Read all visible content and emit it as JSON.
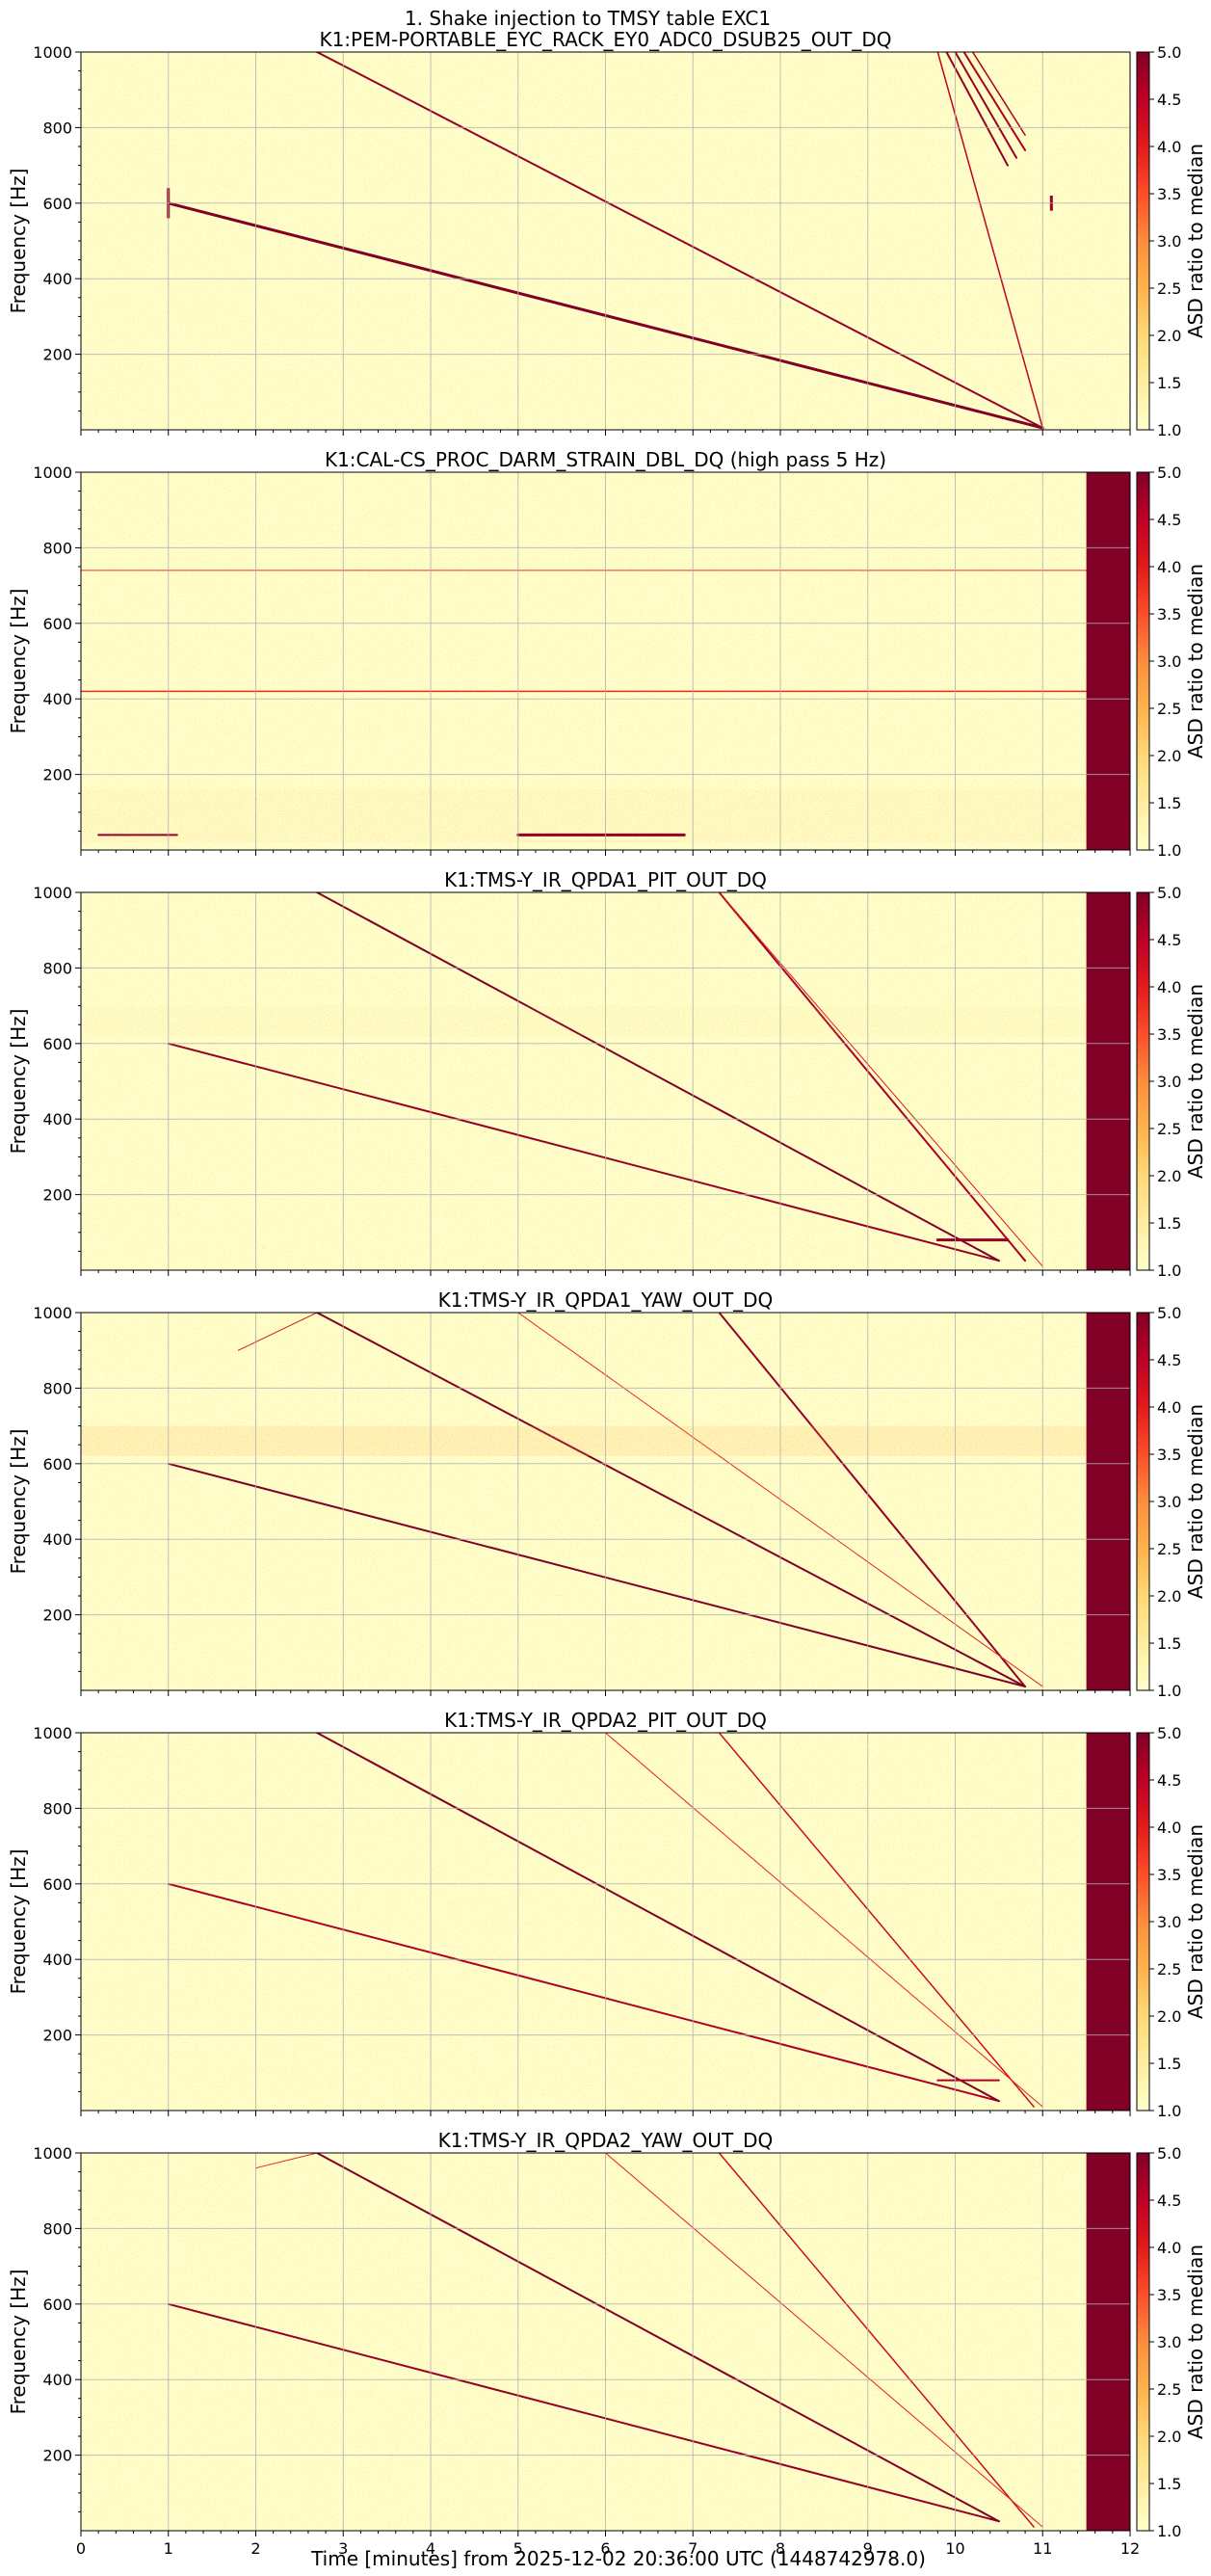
{
  "suptitle": "1. Shake injection to TMSY table EXC1",
  "xlabel": "Time [minutes] from 2025-12-02 20:36:00 UTC (1448742978.0)",
  "chart_data": [
    {
      "type": "heatmap",
      "title": "K1:PEM-PORTABLE_EYC_RACK_EY0_ADC0_DSUB25_OUT_DQ",
      "ylabel": "Frequency [Hz]",
      "colorbar_label": "ASD ratio to median",
      "xlim": [
        0,
        12
      ],
      "ylim": [
        0,
        1000
      ],
      "xticks": [
        0,
        1,
        2,
        3,
        4,
        5,
        6,
        7,
        8,
        9,
        10,
        11,
        12
      ],
      "yticks": [
        200,
        400,
        600,
        800,
        1000
      ],
      "colorbar_ticks": [
        1.0,
        1.5,
        2.0,
        2.5,
        3.0,
        3.5,
        4.0,
        4.5,
        5.0
      ],
      "clim": [
        1.0,
        5.0
      ],
      "saturated_block": null,
      "features": [
        {
          "kind": "line",
          "x": [
            1.0,
            11.0
          ],
          "y": [
            600,
            5
          ],
          "strength": 1.0,
          "width": 3
        },
        {
          "kind": "line",
          "x": [
            2.7,
            11.0
          ],
          "y": [
            1000,
            5
          ],
          "strength": 0.9,
          "width": 2
        },
        {
          "kind": "line",
          "x": [
            9.8,
            11.0
          ],
          "y": [
            1000,
            5
          ],
          "strength": 0.7,
          "width": 1.5
        },
        {
          "kind": "line",
          "x": [
            9.9,
            10.6
          ],
          "y": [
            1000,
            700
          ],
          "strength": 0.9,
          "width": 2
        },
        {
          "kind": "line",
          "x": [
            10.0,
            10.7
          ],
          "y": [
            1000,
            720
          ],
          "strength": 0.9,
          "width": 2
        },
        {
          "kind": "line",
          "x": [
            10.1,
            10.8
          ],
          "y": [
            1000,
            740
          ],
          "strength": 0.8,
          "width": 2
        },
        {
          "kind": "line",
          "x": [
            10.2,
            10.8
          ],
          "y": [
            1000,
            780
          ],
          "strength": 0.8,
          "width": 1.5
        },
        {
          "kind": "vspike",
          "x": 1.0,
          "y": [
            560,
            640
          ],
          "strength": 0.9
        },
        {
          "kind": "vspike",
          "x": 11.1,
          "y": [
            580,
            620
          ],
          "strength": 0.9
        }
      ]
    },
    {
      "type": "heatmap",
      "title": "K1:CAL-CS_PROC_DARM_STRAIN_DBL_DQ (high pass 5 Hz)",
      "ylabel": "Frequency [Hz]",
      "colorbar_label": "ASD ratio to median",
      "xlim": [
        0,
        12
      ],
      "ylim": [
        0,
        1000
      ],
      "xticks": [
        0,
        1,
        2,
        3,
        4,
        5,
        6,
        7,
        8,
        9,
        10,
        11,
        12
      ],
      "yticks": [
        200,
        400,
        600,
        800,
        1000
      ],
      "colorbar_ticks": [
        1.0,
        1.5,
        2.0,
        2.5,
        3.0,
        3.5,
        4.0,
        4.5,
        5.0
      ],
      "clim": [
        1.0,
        5.0
      ],
      "saturated_block": [
        11.5,
        12.0
      ],
      "features": [
        {
          "kind": "hband",
          "x": [
            0,
            11.5
          ],
          "y": [
            20,
            160
          ],
          "strength": 0.35
        },
        {
          "kind": "line",
          "x": [
            0.2,
            1.1
          ],
          "y": [
            40,
            40
          ],
          "strength": 0.9,
          "width": 2
        },
        {
          "kind": "line",
          "x": [
            5.0,
            6.9
          ],
          "y": [
            40,
            40
          ],
          "strength": 0.9,
          "width": 3
        },
        {
          "kind": "line",
          "x": [
            0,
            11.5
          ],
          "y": [
            420,
            420
          ],
          "strength": 0.35,
          "width": 1.5
        },
        {
          "kind": "line",
          "x": [
            0,
            11.5
          ],
          "y": [
            740,
            740
          ],
          "strength": 0.3,
          "width": 1
        }
      ]
    },
    {
      "type": "heatmap",
      "title": "K1:TMS-Y_IR_QPDA1_PIT_OUT_DQ",
      "ylabel": "Frequency [Hz]",
      "colorbar_label": "ASD ratio to median",
      "xlim": [
        0,
        12
      ],
      "ylim": [
        0,
        1000
      ],
      "xticks": [
        0,
        1,
        2,
        3,
        4,
        5,
        6,
        7,
        8,
        9,
        10,
        11,
        12
      ],
      "yticks": [
        200,
        400,
        600,
        800,
        1000
      ],
      "colorbar_ticks": [
        1.0,
        1.5,
        2.0,
        2.5,
        3.0,
        3.5,
        4.0,
        4.5,
        5.0
      ],
      "clim": [
        1.0,
        5.0
      ],
      "saturated_block": [
        11.5,
        12.0
      ],
      "features": [
        {
          "kind": "line",
          "x": [
            1.0,
            10.5
          ],
          "y": [
            600,
            25
          ],
          "strength": 0.9,
          "width": 2
        },
        {
          "kind": "line",
          "x": [
            2.7,
            10.5
          ],
          "y": [
            1000,
            25
          ],
          "strength": 1.0,
          "width": 2
        },
        {
          "kind": "line",
          "x": [
            7.3,
            10.8
          ],
          "y": [
            1000,
            25
          ],
          "strength": 0.8,
          "width": 2
        },
        {
          "kind": "line",
          "x": [
            7.3,
            11.0
          ],
          "y": [
            1000,
            10
          ],
          "strength": 0.5,
          "width": 1
        },
        {
          "kind": "line",
          "x": [
            9.8,
            10.6
          ],
          "y": [
            80,
            80
          ],
          "strength": 0.9,
          "width": 3
        },
        {
          "kind": "hband",
          "x": [
            0,
            11.5
          ],
          "y": [
            620,
            700
          ],
          "strength": 0.25
        }
      ]
    },
    {
      "type": "heatmap",
      "title": "K1:TMS-Y_IR_QPDA1_YAW_OUT_DQ",
      "ylabel": "Frequency [Hz]",
      "colorbar_label": "ASD ratio to median",
      "xlim": [
        0,
        12
      ],
      "ylim": [
        0,
        1000
      ],
      "xticks": [
        0,
        1,
        2,
        3,
        4,
        5,
        6,
        7,
        8,
        9,
        10,
        11,
        12
      ],
      "yticks": [
        200,
        400,
        600,
        800,
        1000
      ],
      "colorbar_ticks": [
        1.0,
        1.5,
        2.0,
        2.5,
        3.0,
        3.5,
        4.0,
        4.5,
        5.0
      ],
      "clim": [
        1.0,
        5.0
      ],
      "saturated_block": [
        11.5,
        12.0
      ],
      "features": [
        {
          "kind": "line",
          "x": [
            1.0,
            10.8
          ],
          "y": [
            600,
            10
          ],
          "strength": 1.0,
          "width": 2
        },
        {
          "kind": "line",
          "x": [
            2.7,
            10.8
          ],
          "y": [
            1000,
            10
          ],
          "strength": 1.0,
          "width": 2
        },
        {
          "kind": "line",
          "x": [
            7.3,
            10.8
          ],
          "y": [
            1000,
            10
          ],
          "strength": 0.9,
          "width": 2
        },
        {
          "kind": "line",
          "x": [
            5.0,
            11.0
          ],
          "y": [
            1000,
            10
          ],
          "strength": 0.4,
          "width": 1
        },
        {
          "kind": "line",
          "x": [
            1.8,
            2.7
          ],
          "y": [
            900,
            1000
          ],
          "strength": 0.5,
          "width": 1
        },
        {
          "kind": "hband",
          "x": [
            0,
            11.5
          ],
          "y": [
            620,
            700
          ],
          "strength": 0.7
        }
      ]
    },
    {
      "type": "heatmap",
      "title": "K1:TMS-Y_IR_QPDA2_PIT_OUT_DQ",
      "ylabel": "Frequency [Hz]",
      "colorbar_label": "ASD ratio to median",
      "xlim": [
        0,
        12
      ],
      "ylim": [
        0,
        1000
      ],
      "xticks": [
        0,
        1,
        2,
        3,
        4,
        5,
        6,
        7,
        8,
        9,
        10,
        11,
        12
      ],
      "yticks": [
        200,
        400,
        600,
        800,
        1000
      ],
      "colorbar_ticks": [
        1.0,
        1.5,
        2.0,
        2.5,
        3.0,
        3.5,
        4.0,
        4.5,
        5.0
      ],
      "clim": [
        1.0,
        5.0
      ],
      "saturated_block": [
        11.5,
        12.0
      ],
      "features": [
        {
          "kind": "line",
          "x": [
            1.0,
            10.5
          ],
          "y": [
            600,
            25
          ],
          "strength": 0.8,
          "width": 2
        },
        {
          "kind": "line",
          "x": [
            2.7,
            10.5
          ],
          "y": [
            1000,
            25
          ],
          "strength": 1.0,
          "width": 2
        },
        {
          "kind": "line",
          "x": [
            7.3,
            10.9
          ],
          "y": [
            1000,
            10
          ],
          "strength": 0.6,
          "width": 1.5
        },
        {
          "kind": "line",
          "x": [
            6.0,
            11.0
          ],
          "y": [
            1000,
            10
          ],
          "strength": 0.4,
          "width": 1
        },
        {
          "kind": "line",
          "x": [
            9.8,
            10.5
          ],
          "y": [
            80,
            80
          ],
          "strength": 0.8,
          "width": 2
        }
      ]
    },
    {
      "type": "heatmap",
      "title": "K1:TMS-Y_IR_QPDA2_YAW_OUT_DQ",
      "ylabel": "Frequency [Hz]",
      "colorbar_label": "ASD ratio to median",
      "xlim": [
        0,
        12
      ],
      "ylim": [
        0,
        1000
      ],
      "xticks": [
        0,
        1,
        2,
        3,
        4,
        5,
        6,
        7,
        8,
        9,
        10,
        11,
        12
      ],
      "yticks": [
        200,
        400,
        600,
        800,
        1000
      ],
      "colorbar_ticks": [
        1.0,
        1.5,
        2.0,
        2.5,
        3.0,
        3.5,
        4.0,
        4.5,
        5.0
      ],
      "clim": [
        1.0,
        5.0
      ],
      "saturated_block": [
        11.5,
        12.0
      ],
      "features": [
        {
          "kind": "line",
          "x": [
            1.0,
            10.5
          ],
          "y": [
            600,
            25
          ],
          "strength": 0.9,
          "width": 2
        },
        {
          "kind": "line",
          "x": [
            2.7,
            10.5
          ],
          "y": [
            1000,
            25
          ],
          "strength": 1.0,
          "width": 2
        },
        {
          "kind": "line",
          "x": [
            7.3,
            10.9
          ],
          "y": [
            1000,
            10
          ],
          "strength": 0.6,
          "width": 1.5
        },
        {
          "kind": "line",
          "x": [
            6.0,
            11.0
          ],
          "y": [
            1000,
            10
          ],
          "strength": 0.4,
          "width": 1
        },
        {
          "kind": "line",
          "x": [
            2.0,
            2.7
          ],
          "y": [
            960,
            1000
          ],
          "strength": 0.4,
          "width": 1
        }
      ]
    }
  ],
  "colors": {
    "background_low": "#ffffcc",
    "colormap": [
      "#ffffcc",
      "#ffeda0",
      "#fed976",
      "#feb24c",
      "#fd8d3c",
      "#fc4e2a",
      "#e31a1c",
      "#bd0026",
      "#800026"
    ],
    "grid": "#b0b0b0"
  }
}
